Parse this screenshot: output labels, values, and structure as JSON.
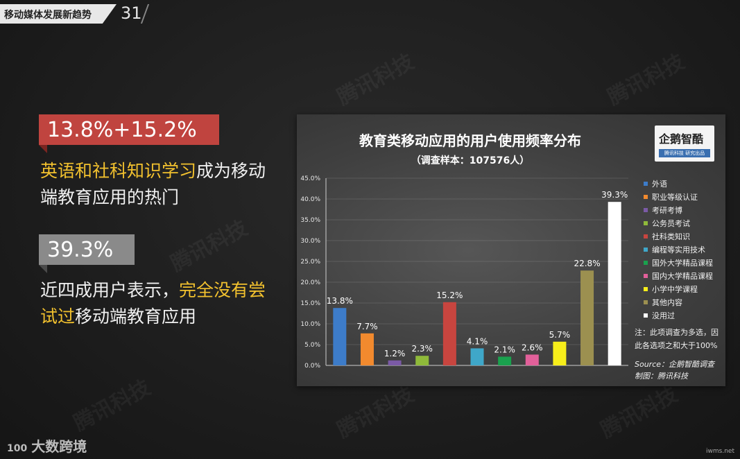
{
  "header": {
    "section_title": "移动媒体发展新趋势",
    "page_number": "31"
  },
  "left": {
    "badge1": "13.8%+15.2%",
    "para1_highlight": "英语和社科知识学习",
    "para1_rest": "成为移动端教育应用的热门",
    "badge2": "39.3%",
    "para2_start": "近四成用户表示，",
    "para2_highlight": "完全没有尝试过",
    "para2_rest": "移动端教育应用"
  },
  "logo": {
    "text": "企鹅智酷",
    "subtext": "腾讯科技 研究出品"
  },
  "chart_data": {
    "type": "bar",
    "title": "教育类移动应用的用户使用频率分布",
    "subtitle": "（调查样本：107576人）",
    "categories": [
      "外语",
      "职业等级认证",
      "考研考博",
      "公务员考试",
      "社科类知识",
      "编程等实用技术",
      "国外大学精品课程",
      "国内大学精品课程",
      "小学中学课程",
      "其他内容",
      "没用过"
    ],
    "values": [
      13.8,
      7.7,
      1.2,
      2.3,
      15.2,
      4.1,
      2.1,
      2.6,
      5.7,
      22.8,
      39.3
    ],
    "data_labels": [
      "13.8%",
      "7.7%",
      "1.2%",
      "2.3%",
      "15.2%",
      "4.1%",
      "2.1%",
      "2.6%",
      "5.7%",
      "22.8%",
      "39.3%"
    ],
    "colors": [
      "#3d7cc9",
      "#f28a2e",
      "#7b5aa6",
      "#8fba3a",
      "#c8453f",
      "#3fa7c9",
      "#1aa14e",
      "#e2609a",
      "#f7ee1a",
      "#9c9050",
      "#ffffff"
    ],
    "ylim": [
      0,
      45
    ],
    "yticks": [
      "0.0%",
      "5.0%",
      "10.0%",
      "15.0%",
      "20.0%",
      "25.0%",
      "30.0%",
      "35.0%",
      "40.0%",
      "45.0%"
    ],
    "legend_position": "right",
    "grid": true
  },
  "note": "注：此项调查为多选，因此各选项之和大于100%",
  "source_line": "Source：企鹅智酷调查",
  "credit_line": "制图：腾讯科技",
  "footer": {
    "brand": "大数跨境",
    "brand_mark": "100",
    "site": "iwms.net"
  },
  "watermark": "腾讯科技"
}
